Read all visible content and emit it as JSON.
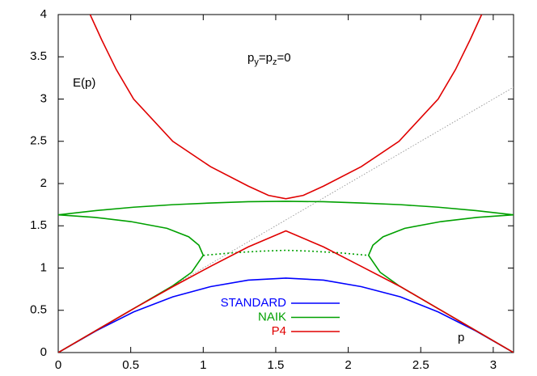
{
  "chart_data": {
    "type": "line",
    "xlabel": "p",
    "ylabel": "E(p)",
    "annotation_parts": [
      "p",
      "y",
      "=p",
      "z",
      "=0"
    ],
    "xlim": [
      0,
      3.14
    ],
    "ylim": [
      0,
      4
    ],
    "xticks": [
      0,
      0.5,
      1,
      1.5,
      2,
      2.5,
      3
    ],
    "yticks": [
      0,
      0.5,
      1,
      1.5,
      2,
      2.5,
      3,
      3.5,
      4
    ],
    "legend": "lower center",
    "reference_line": {
      "color": "#888888",
      "style": "dotted",
      "x": [
        0,
        3.14
      ],
      "values": [
        0,
        3.14
      ]
    },
    "series": [
      {
        "name": "STANDARD",
        "color": "#0000ff",
        "segments": [
          {
            "style": "solid",
            "x": [
              0,
              0.26,
              0.52,
              0.79,
              1.05,
              1.31,
              1.57,
              1.83,
              2.09,
              2.36,
              2.62,
              2.88,
              3.14
            ],
            "values": [
              0,
              0.256,
              0.481,
              0.659,
              0.78,
              0.857,
              0.881,
              0.857,
              0.78,
              0.659,
              0.481,
              0.256,
              0
            ]
          }
        ]
      },
      {
        "name": "NAIK",
        "color": "#00a000",
        "segments": [
          {
            "style": "solid",
            "x": [
              0,
              0.26,
              0.52,
              0.79,
              1.05,
              1.31,
              1.57,
              1.83,
              2.09,
              2.36,
              2.62,
              2.88,
              3.14
            ],
            "values": [
              1.63,
              1.68,
              1.72,
              1.75,
              1.77,
              1.785,
              1.79,
              1.785,
              1.77,
              1.75,
              1.72,
              1.68,
              1.63
            ]
          },
          {
            "style": "solid",
            "x": [
              0,
              0.26,
              0.52,
              0.79,
              0.92,
              1.0,
              0.97,
              0.9,
              0.75,
              0.5,
              0.25,
              0
            ],
            "values": [
              0,
              0.26,
              0.52,
              0.79,
              0.95,
              1.15,
              1.27,
              1.37,
              1.47,
              1.55,
              1.6,
              1.63
            ]
          },
          {
            "style": "solid",
            "x": [
              3.14,
              2.88,
              2.62,
              2.35,
              2.22,
              2.14,
              2.17,
              2.24,
              2.39,
              2.64,
              2.89,
              3.14
            ],
            "values": [
              0,
              0.26,
              0.52,
              0.79,
              0.95,
              1.15,
              1.27,
              1.37,
              1.47,
              1.55,
              1.6,
              1.63
            ]
          },
          {
            "style": "dotted",
            "x": [
              1.0,
              1.2,
              1.4,
              1.57,
              1.74,
              1.94,
              2.14
            ],
            "values": [
              1.15,
              1.18,
              1.2,
              1.21,
              1.2,
              1.18,
              1.15
            ]
          }
        ]
      },
      {
        "name": "P4",
        "color": "#e00000",
        "segments": [
          {
            "style": "solid",
            "x": [
              0,
              0.26,
              0.52,
              0.79,
              1.05,
              1.31,
              1.57,
              1.83,
              2.09,
              2.36,
              2.62,
              2.88,
              3.14
            ],
            "values": [
              0,
              0.26,
              0.52,
              0.78,
              1.02,
              1.25,
              1.44,
              1.25,
              1.02,
              0.78,
              0.52,
              0.26,
              0
            ]
          },
          {
            "style": "solid",
            "x": [
              0.22,
              0.3,
              0.4,
              0.52,
              0.79,
              1.05,
              1.31,
              1.45,
              1.57,
              1.69,
              1.83,
              2.09,
              2.35,
              2.62,
              2.74,
              2.84,
              2.92
            ],
            "values": [
              4.0,
              3.7,
              3.35,
              3.0,
              2.5,
              2.2,
              1.97,
              1.86,
              1.82,
              1.86,
              1.97,
              2.2,
              2.5,
              3.0,
              3.35,
              3.7,
              4.0
            ]
          }
        ]
      }
    ]
  }
}
